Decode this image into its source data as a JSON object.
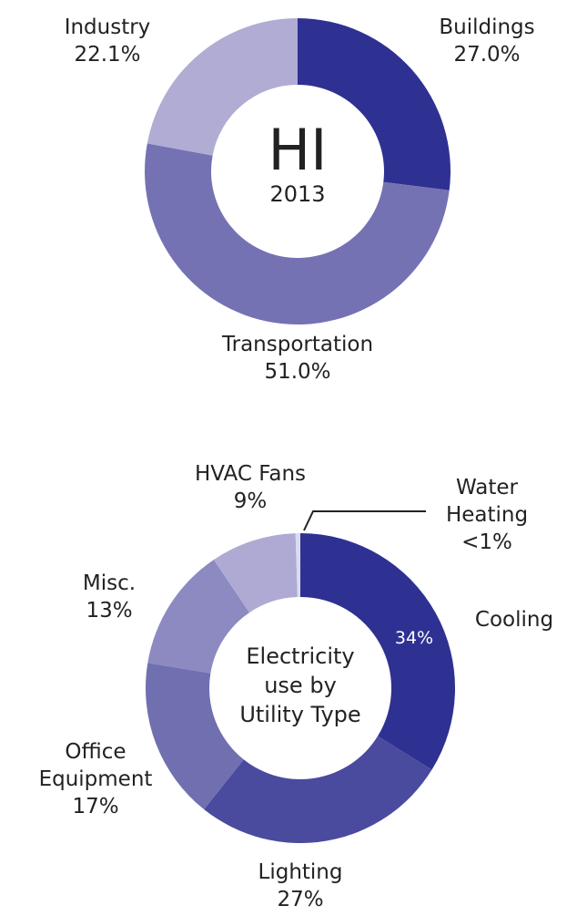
{
  "chart_data": [
    {
      "type": "pie",
      "title": "HI",
      "subtitle": "2013",
      "categories": [
        "Buildings",
        "Transportation",
        "Industry"
      ],
      "values": [
        27.0,
        51.0,
        22.1
      ],
      "value_labels": [
        "27.0%",
        "51.0%",
        "22.1%"
      ],
      "colors": [
        "#2e3192",
        "#7472b3",
        "#b0acd4"
      ]
    },
    {
      "type": "pie",
      "title": "Electricity use by Utility Type",
      "categories": [
        "Cooling",
        "Lighting",
        "Office Equipment",
        "Misc.",
        "HVAC Fans",
        "Water Heating"
      ],
      "values": [
        34,
        27,
        17,
        13,
        9,
        0.5
      ],
      "value_labels": [
        "34%",
        "27%",
        "17%",
        "13%",
        "9%",
        "<1%"
      ],
      "colors": [
        "#2e3192",
        "#4a4a9f",
        "#7070b0",
        "#8c8ac0",
        "#aeaad4",
        "#d8dcef"
      ]
    }
  ]
}
